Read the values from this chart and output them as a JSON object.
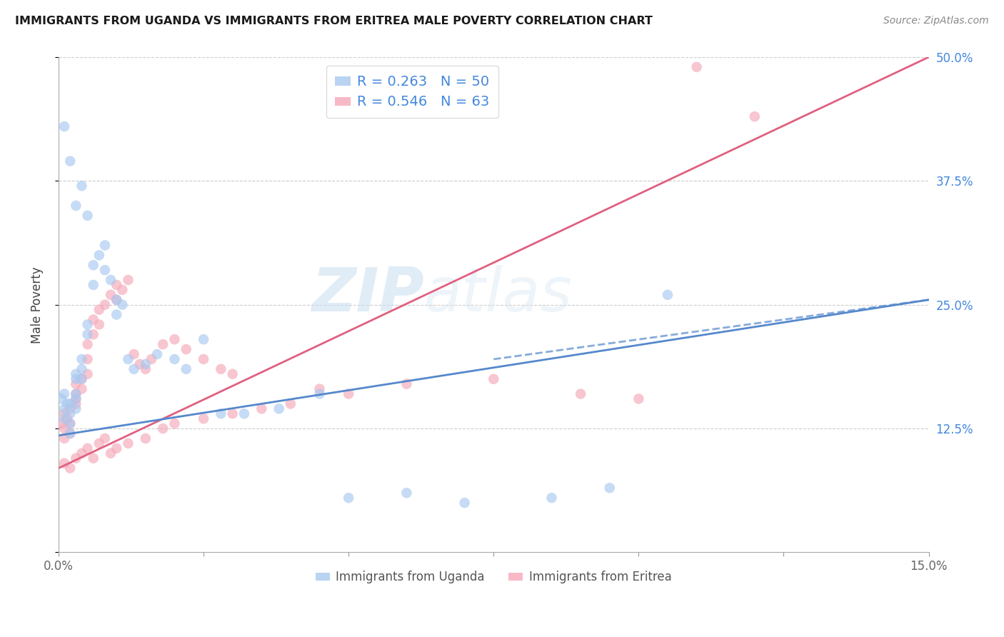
{
  "title": "IMMIGRANTS FROM UGANDA VS IMMIGRANTS FROM ERITREA MALE POVERTY CORRELATION CHART",
  "source": "Source: ZipAtlas.com",
  "ylabel": "Male Poverty",
  "xmin": 0.0,
  "xmax": 0.15,
  "ymin": 0.0,
  "ymax": 0.5,
  "yticks": [
    0.0,
    0.125,
    0.25,
    0.375,
    0.5
  ],
  "ytick_labels": [
    "",
    "12.5%",
    "25.0%",
    "37.5%",
    "50.0%"
  ],
  "xticks": [
    0.0,
    0.025,
    0.05,
    0.075,
    0.1,
    0.125,
    0.15
  ],
  "xtick_labels": [
    "0.0%",
    "",
    "",
    "",
    "",
    "",
    "15.0%"
  ],
  "uganda_R": 0.263,
  "uganda_N": 50,
  "eritrea_R": 0.546,
  "eritrea_N": 63,
  "uganda_color": "#A8C8F0",
  "eritrea_color": "#F5A8B8",
  "uganda_line_color": "#5588CC",
  "eritrea_line_color": "#E06080",
  "watermark_zip": "ZIP",
  "watermark_atlas": "atlas",
  "legend_uganda": "Immigrants from Uganda",
  "legend_eritrea": "Immigrants from Eritrea",
  "uganda_x": [
    0.0005,
    0.001,
    0.001,
    0.001,
    0.0015,
    0.002,
    0.002,
    0.002,
    0.002,
    0.003,
    0.003,
    0.003,
    0.003,
    0.003,
    0.004,
    0.004,
    0.004,
    0.005,
    0.005,
    0.006,
    0.006,
    0.007,
    0.008,
    0.008,
    0.009,
    0.01,
    0.01,
    0.011,
    0.012,
    0.013,
    0.015,
    0.017,
    0.02,
    0.022,
    0.025,
    0.028,
    0.032,
    0.038,
    0.045,
    0.001,
    0.002,
    0.003,
    0.004,
    0.005,
    0.05,
    0.06,
    0.07,
    0.085,
    0.095,
    0.105
  ],
  "uganda_y": [
    0.155,
    0.145,
    0.16,
    0.135,
    0.15,
    0.15,
    0.14,
    0.13,
    0.12,
    0.175,
    0.18,
    0.16,
    0.155,
    0.145,
    0.195,
    0.185,
    0.175,
    0.22,
    0.23,
    0.27,
    0.29,
    0.3,
    0.31,
    0.285,
    0.275,
    0.255,
    0.24,
    0.25,
    0.195,
    0.185,
    0.19,
    0.2,
    0.195,
    0.185,
    0.215,
    0.14,
    0.14,
    0.145,
    0.16,
    0.43,
    0.395,
    0.35,
    0.37,
    0.34,
    0.055,
    0.06,
    0.05,
    0.055,
    0.065,
    0.26
  ],
  "eritrea_x": [
    0.0005,
    0.001,
    0.001,
    0.001,
    0.0015,
    0.002,
    0.002,
    0.002,
    0.003,
    0.003,
    0.003,
    0.003,
    0.004,
    0.004,
    0.005,
    0.005,
    0.005,
    0.006,
    0.006,
    0.007,
    0.007,
    0.008,
    0.009,
    0.01,
    0.01,
    0.011,
    0.012,
    0.013,
    0.014,
    0.015,
    0.016,
    0.018,
    0.02,
    0.022,
    0.025,
    0.028,
    0.03,
    0.001,
    0.002,
    0.003,
    0.004,
    0.005,
    0.006,
    0.007,
    0.008,
    0.009,
    0.01,
    0.012,
    0.015,
    0.018,
    0.02,
    0.025,
    0.03,
    0.035,
    0.04,
    0.045,
    0.05,
    0.06,
    0.075,
    0.09,
    0.1,
    0.11,
    0.12
  ],
  "eritrea_y": [
    0.13,
    0.125,
    0.14,
    0.115,
    0.135,
    0.145,
    0.13,
    0.12,
    0.16,
    0.155,
    0.17,
    0.15,
    0.175,
    0.165,
    0.21,
    0.195,
    0.18,
    0.22,
    0.235,
    0.245,
    0.23,
    0.25,
    0.26,
    0.27,
    0.255,
    0.265,
    0.275,
    0.2,
    0.19,
    0.185,
    0.195,
    0.21,
    0.215,
    0.205,
    0.195,
    0.185,
    0.18,
    0.09,
    0.085,
    0.095,
    0.1,
    0.105,
    0.095,
    0.11,
    0.115,
    0.1,
    0.105,
    0.11,
    0.115,
    0.125,
    0.13,
    0.135,
    0.14,
    0.145,
    0.15,
    0.165,
    0.16,
    0.17,
    0.175,
    0.16,
    0.155,
    0.49,
    0.44
  ],
  "uganda_line_x": [
    0.0,
    0.15
  ],
  "uganda_line_y": [
    0.118,
    0.255
  ],
  "eritrea_line_x": [
    0.0,
    0.15
  ],
  "eritrea_line_y": [
    0.085,
    0.5
  ]
}
